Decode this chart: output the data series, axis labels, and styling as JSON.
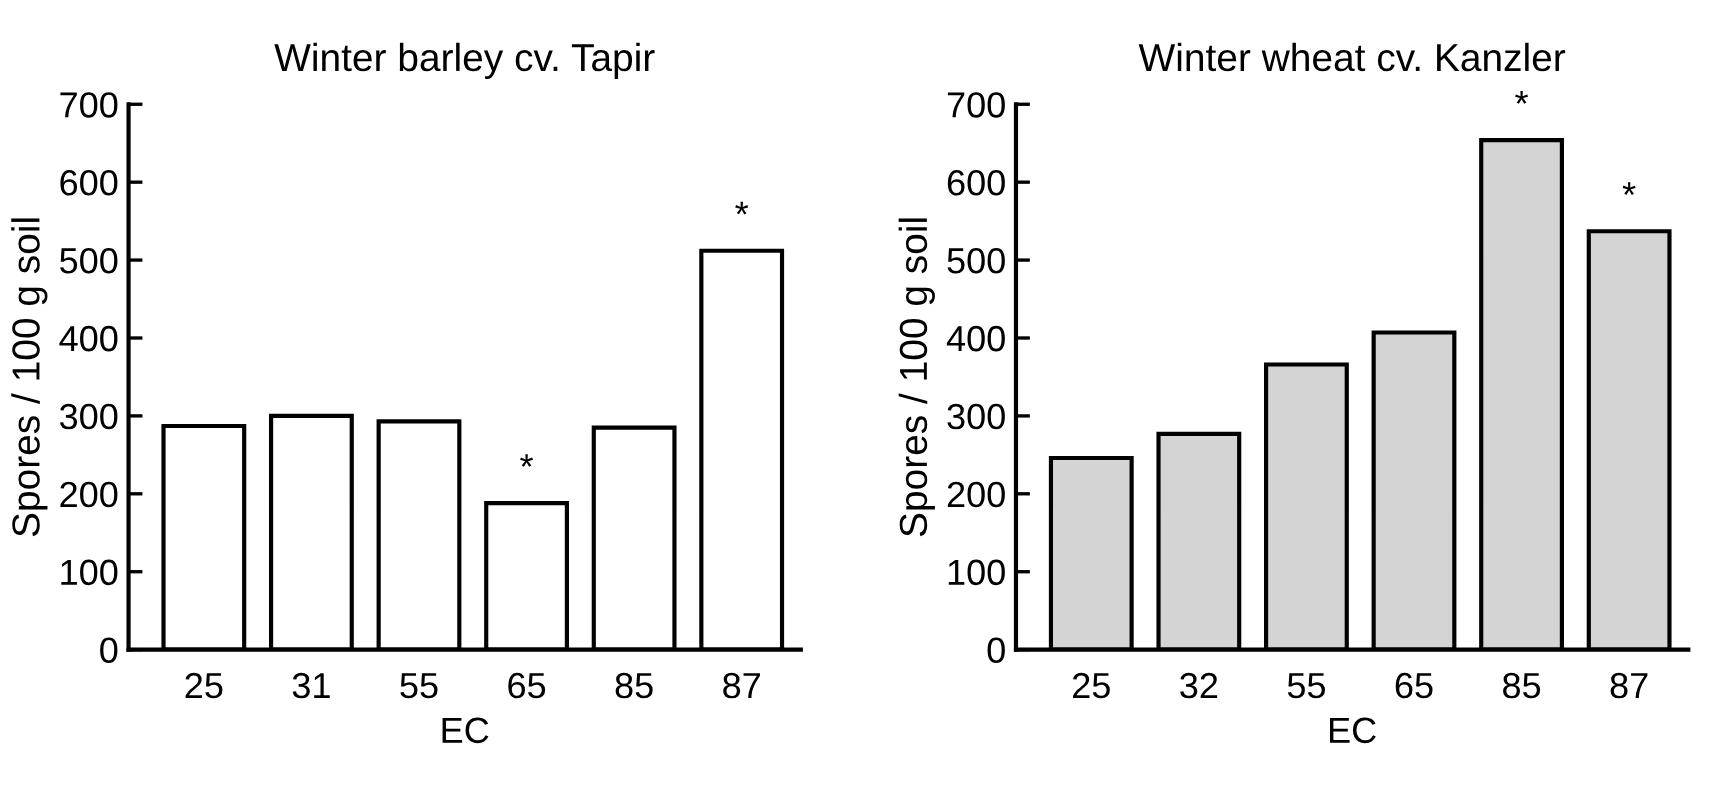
{
  "chart_data": [
    {
      "type": "bar",
      "title": "Winter barley cv. Tapir",
      "xlabel": "EC",
      "ylabel": "Spores / 100 g soil",
      "categories": [
        "25",
        "31",
        "55",
        "65",
        "85",
        "87"
      ],
      "series": [
        {
          "color": "#ffffff",
          "values": [
            287,
            300,
            293,
            188,
            285,
            512
          ]
        }
      ],
      "ylim": [
        0,
        700
      ],
      "yticks": [
        0,
        100,
        200,
        300,
        400,
        500,
        600,
        700
      ],
      "grid": false,
      "legend": false,
      "annotations": [
        {
          "text": "*",
          "x": "65",
          "y": 188
        },
        {
          "text": "*",
          "x": "87",
          "y": 512
        }
      ]
    },
    {
      "type": "bar",
      "title": "Winter wheat cv. Kanzler",
      "xlabel": "EC",
      "ylabel": "Spores / 100 g soil",
      "categories": [
        "25",
        "32",
        "55",
        "65",
        "85",
        "87"
      ],
      "series": [
        {
          "color": "#d4d4d4",
          "values": [
            246,
            277,
            366,
            407,
            654,
            537
          ]
        }
      ],
      "ylim": [
        0,
        700
      ],
      "yticks": [
        0,
        100,
        200,
        300,
        400,
        500,
        600,
        700
      ],
      "grid": false,
      "legend": false,
      "annotations": [
        {
          "text": "*",
          "x": "85",
          "y": 654
        },
        {
          "text": "*",
          "x": "87",
          "y": 537
        }
      ]
    }
  ]
}
